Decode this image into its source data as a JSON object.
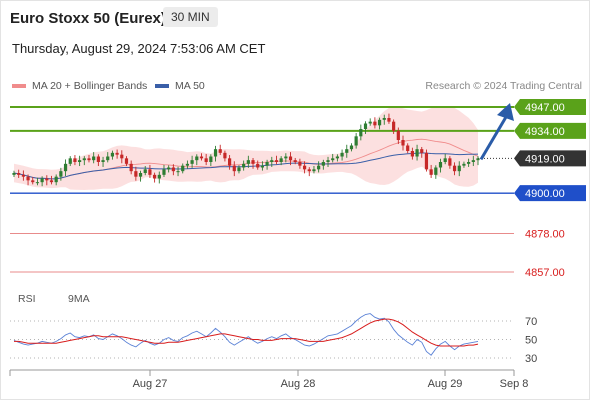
{
  "header": {
    "title": "Euro Stoxx 50 (Eurex)",
    "interval": "30 MIN",
    "datetime": "Thursday, August 29, 2024 7:53:06 AM CET"
  },
  "legend": {
    "bb_label": "MA 20 + Bollinger Bands",
    "bb_color": "#f08c8c",
    "ma50_label": "MA 50",
    "ma50_color": "#3a5fa8"
  },
  "credit": "Research © 2024 Trading Central",
  "rsi_legend": {
    "rsi_label": "RSI",
    "rsi_color": "#5b82d6",
    "ma9_label": "9MA",
    "ma9_color": "#d81d1d"
  },
  "colors": {
    "bull": "#2e7d32",
    "bear": "#c62828",
    "green_level": "#5aa21a",
    "blue_level": "#1f4fc9",
    "red_level": "#e88b8b",
    "current": "#333333",
    "arrow": "#2a5ca8"
  },
  "chart_data": [
    {
      "type": "candlestick",
      "title": "Euro Stoxx 50 (Eurex)",
      "interval": "30 MIN",
      "x_labels": [
        "Aug 27",
        "Aug 28",
        "Aug 29",
        "Sep 8"
      ],
      "ylim": [
        4850,
        4952
      ],
      "price_levels": [
        {
          "value": 4947.0,
          "label": "4947.00",
          "kind": "resistance"
        },
        {
          "value": 4934.0,
          "label": "4934.00",
          "kind": "resistance"
        },
        {
          "value": 4919.0,
          "label": "4919.00",
          "kind": "current"
        },
        {
          "value": 4900.0,
          "label": "4900.00",
          "kind": "pivot"
        },
        {
          "value": 4878.0,
          "label": "4878.00",
          "kind": "support"
        },
        {
          "value": 4857.0,
          "label": "4857.00",
          "kind": "support"
        }
      ],
      "closes": [
        4911,
        4910,
        4909,
        4907,
        4906,
        4906,
        4908,
        4907,
        4906,
        4909,
        4912,
        4916,
        4919,
        4917,
        4918,
        4919,
        4918,
        4920,
        4917,
        4918,
        4920,
        4922,
        4921,
        4919,
        4916,
        4912,
        4909,
        4911,
        4913,
        4910,
        4908,
        4910,
        4913,
        4914,
        4912,
        4912,
        4915,
        4916,
        4918,
        4920,
        4919,
        4917,
        4920,
        4924,
        4922,
        4919,
        4915,
        4912,
        4914,
        4916,
        4918,
        4916,
        4914,
        4915,
        4917,
        4918,
        4917,
        4919,
        4920,
        4918,
        4917,
        4915,
        4913,
        4912,
        4913,
        4915,
        4917,
        4918,
        4919,
        4920,
        4922,
        4924,
        4926,
        4931,
        4935,
        4938,
        4939,
        4937,
        4940,
        4941,
        4939,
        4934,
        4929,
        4926,
        4923,
        4920,
        4924,
        4922,
        4913,
        4910,
        4914,
        4917,
        4919,
        4915,
        4912,
        4915,
        4916,
        4917,
        4918,
        4919
      ],
      "indicators": [
        "MA 20 + Bollinger Bands",
        "MA 50"
      ],
      "arrow": {
        "from": 4919.0,
        "to": 4947.0
      }
    },
    {
      "type": "line",
      "title": "RSI",
      "series": [
        {
          "name": "RSI",
          "values": [
            49,
            47,
            45,
            44,
            45,
            46,
            48,
            47,
            46,
            48,
            51,
            55,
            57,
            53,
            52,
            54,
            53,
            55,
            51,
            50,
            53,
            56,
            54,
            51,
            47,
            44,
            42,
            46,
            49,
            46,
            44,
            46,
            50,
            52,
            49,
            48,
            52,
            54,
            57,
            59,
            56,
            53,
            57,
            62,
            58,
            53,
            47,
            44,
            47,
            50,
            53,
            49,
            46,
            48,
            51,
            53,
            51,
            54,
            56,
            52,
            50,
            47,
            44,
            43,
            45,
            48,
            51,
            54,
            55,
            56,
            59,
            62,
            65,
            70,
            74,
            77,
            78,
            74,
            72,
            73,
            69,
            61,
            55,
            51,
            47,
            44,
            50,
            47,
            37,
            33,
            40,
            45,
            48,
            43,
            39,
            43,
            45,
            46,
            47,
            48
          ]
        },
        {
          "name": "9MA",
          "values": [
            48,
            48,
            47,
            46,
            46,
            46,
            46,
            46,
            46,
            46,
            47,
            48,
            49,
            50,
            51,
            52,
            53,
            54,
            54,
            53,
            53,
            53,
            53,
            53,
            52,
            51,
            50,
            49,
            48,
            47,
            46,
            46,
            46,
            47,
            47,
            47,
            48,
            49,
            50,
            51,
            52,
            53,
            54,
            55,
            56,
            56,
            55,
            54,
            53,
            52,
            51,
            50,
            50,
            49,
            49,
            49,
            50,
            51,
            51,
            51,
            51,
            50,
            49,
            48,
            48,
            48,
            48,
            49,
            50,
            51,
            52,
            54,
            56,
            59,
            62,
            65,
            68,
            70,
            71,
            72,
            72,
            71,
            69,
            66,
            62,
            58,
            55,
            52,
            49,
            46,
            44,
            43,
            43,
            43,
            43,
            43,
            43,
            44,
            44,
            45
          ]
        }
      ],
      "reference_lines": [
        {
          "value": 70,
          "label": "70"
        },
        {
          "value": 50,
          "label": "50"
        },
        {
          "value": 30,
          "label": "30"
        }
      ],
      "ylim": [
        18,
        82
      ]
    }
  ]
}
